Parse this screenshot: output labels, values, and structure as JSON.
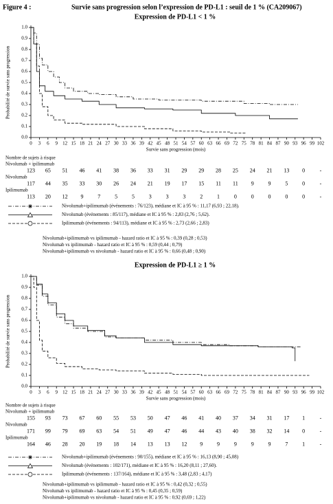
{
  "header": {
    "label": "Figure 4 :",
    "title": "Survie sans progression selon l’expression de PD-L1 : seuil de 1 % (CA209067)"
  },
  "chart_data": [
    {
      "type": "line",
      "title": "Expression de PD-L1 < 1 %",
      "y_label": "Probabilité de survie sans progression",
      "x_label": "Survie sans progression (mois)",
      "xlim": [
        0,
        102
      ],
      "xticks": [
        0,
        3,
        6,
        9,
        12,
        15,
        18,
        21,
        24,
        27,
        30,
        33,
        36,
        39,
        42,
        45,
        48,
        51,
        54,
        57,
        60,
        63,
        66,
        69,
        72,
        75,
        78,
        81,
        84,
        87,
        90,
        93,
        96,
        99,
        102
      ],
      "ylim": [
        0,
        1
      ],
      "yticks": [
        {
          "value": 0,
          "label": "0.0"
        },
        {
          "value": 0.1,
          "label": "0.1"
        },
        {
          "value": 0.2,
          "label": "0.2"
        },
        {
          "value": 0.3,
          "label": "0.3"
        },
        {
          "value": 0.4,
          "label": "0.4"
        },
        {
          "value": 0.5,
          "label": "0.5"
        },
        {
          "value": 0.6,
          "label": "0.6"
        },
        {
          "value": 0.7,
          "label": "0.7"
        },
        {
          "value": 0.8,
          "label": "0.8"
        },
        {
          "value": 0.9,
          "label": "0.9"
        },
        {
          "value": 1,
          "label": "1.0"
        }
      ],
      "series": [
        {
          "name": "Nivolumab+ipilimumab (événements : 76/123), médiane et IC à 95 % : 11,17 (6,93 ; 22,18).",
          "color": "#000000",
          "line_style": "dashdot",
          "marker": "star",
          "x": [
            0,
            1,
            2,
            3,
            4,
            6,
            8,
            10,
            12,
            15,
            20,
            24,
            30,
            36,
            45,
            60,
            75,
            84,
            94
          ],
          "values": [
            1,
            0.95,
            0.85,
            0.72,
            0.66,
            0.6,
            0.55,
            0.5,
            0.45,
            0.42,
            0.4,
            0.39,
            0.37,
            0.35,
            0.34,
            0.33,
            0.31,
            0.3,
            0.3
          ]
        },
        {
          "name": "Nivolumab (événements : 85/117), médiane et IC à 95 % : 2,83 (2,76 ; 5,62).",
          "color": "#000000",
          "line_style": "solid",
          "marker": "triangle",
          "x": [
            0,
            1,
            2,
            3,
            5,
            8,
            12,
            18,
            24,
            30,
            40,
            50,
            60,
            72,
            84,
            94
          ],
          "values": [
            1,
            0.85,
            0.6,
            0.47,
            0.42,
            0.38,
            0.35,
            0.33,
            0.3,
            0.27,
            0.26,
            0.25,
            0.22,
            0.2,
            0.17,
            0.17
          ]
        },
        {
          "name": "Ipilimumab (événements : 94/113), médiane et IC à 95 % : 2,73 (2,66 ; 2,83)",
          "color": "#000000",
          "line_style": "dashed",
          "marker": "circle",
          "x": [
            0,
            1,
            2,
            3,
            4,
            6,
            8,
            12,
            18,
            30,
            40,
            50,
            60,
            70,
            76
          ],
          "values": [
            1,
            0.85,
            0.65,
            0.4,
            0.28,
            0.2,
            0.16,
            0.13,
            0.12,
            0.1,
            0.08,
            0.06,
            0.05,
            0.04,
            0.04
          ]
        }
      ],
      "risk_table": {
        "title": "Nombre de sujets à risque",
        "x": [
          0,
          6,
          12,
          18,
          24,
          30,
          36,
          42,
          48,
          54,
          60,
          66,
          72,
          78,
          84,
          90,
          96,
          102
        ],
        "groups": [
          {
            "name": "Nivolumab + ipilimumab",
            "counts": [
              123,
              65,
              51,
              46,
              41,
              38,
              36,
              33,
              31,
              29,
              29,
              28,
              25,
              24,
              21,
              13,
              0,
              "-"
            ]
          },
          {
            "name": "Nivolumab",
            "counts": [
              117,
              44,
              35,
              33,
              30,
              26,
              24,
              21,
              19,
              17,
              15,
              11,
              11,
              9,
              9,
              5,
              0,
              "-"
            ]
          },
          {
            "name": "Ipilimumab",
            "counts": [
              113,
              20,
              12,
              9,
              7,
              5,
              5,
              3,
              3,
              3,
              2,
              1,
              0,
              0,
              0,
              0,
              0,
              "-"
            ]
          }
        ]
      },
      "comparisons": [
        "Nivolumab+ipilimumab vs ipilimumab - hazard ratio et IC à 95 % : 0,39 (0,28 ; 0,53)",
        "Nivolumab vs ipilimumab - hazard ratio et IC à 95 % : 0,59 (0,44 ; 0,79)",
        "Nivolumab+ipilimumab vs nivolumab - hazard ratio et IC à 95 % : 0,66 (0,48 ; 0,90)"
      ]
    },
    {
      "type": "line",
      "title": "Expression de PD-L1 ≥ 1 %",
      "y_label": "Probabilité de survie sans progression",
      "x_label": "Survie sans progression (mois)",
      "xlim": [
        0,
        102
      ],
      "xticks": [
        0,
        3,
        6,
        9,
        12,
        15,
        18,
        21,
        24,
        27,
        30,
        33,
        36,
        39,
        42,
        45,
        48,
        51,
        54,
        57,
        60,
        63,
        66,
        69,
        72,
        75,
        78,
        81,
        84,
        87,
        90,
        93,
        96,
        99,
        102
      ],
      "ylim": [
        0,
        1
      ],
      "yticks": [
        {
          "value": 0,
          "label": "0.0"
        },
        {
          "value": 0.1,
          "label": "0.1"
        },
        {
          "value": 0.2,
          "label": "0.2"
        },
        {
          "value": 0.3,
          "label": "0.3"
        },
        {
          "value": 0.4,
          "label": "0.4"
        },
        {
          "value": 0.5,
          "label": "0.5"
        },
        {
          "value": 0.6,
          "label": "0.6"
        },
        {
          "value": 0.7,
          "label": "0.7"
        },
        {
          "value": 0.8,
          "label": "0.8"
        },
        {
          "value": 0.9,
          "label": "0.9"
        },
        {
          "value": 1,
          "label": "1.0"
        }
      ],
      "series": [
        {
          "name": "Nivolumab+ipilimumab (événements : 90/155), médiane et IC à 95 % : 16,13 (8,90 ; 45,08)",
          "color": "#000000",
          "line_style": "dashdot",
          "marker": "star",
          "x": [
            0,
            2,
            4,
            6,
            9,
            12,
            15,
            20,
            26,
            30,
            40,
            50,
            60,
            70,
            80,
            95
          ],
          "values": [
            1,
            0.92,
            0.82,
            0.74,
            0.63,
            0.57,
            0.53,
            0.5,
            0.45,
            0.44,
            0.42,
            0.4,
            0.38,
            0.37,
            0.36,
            0.35
          ]
        },
        {
          "name": "Nivolumab (événements : 102/171), médiane et IC à 95 % : 16,20 (8,11 ; 27,60).",
          "color": "#000000",
          "line_style": "solid",
          "marker": "triangle",
          "x": [
            0,
            2,
            4,
            6,
            9,
            12,
            15,
            20,
            26,
            30,
            40,
            50,
            60,
            80,
            92,
            93
          ],
          "values": [
            1,
            0.93,
            0.84,
            0.76,
            0.66,
            0.6,
            0.55,
            0.51,
            0.46,
            0.44,
            0.4,
            0.38,
            0.37,
            0.36,
            0.35,
            0.23
          ]
        },
        {
          "name": "Ipilimumab (événements : 137/164), médiane et IC à 95 % : 3,48 (2,83 ; 4,17)",
          "color": "#000000",
          "line_style": "dashed",
          "marker": "circle",
          "x": [
            0,
            1,
            2,
            3,
            4,
            6,
            9,
            12,
            18,
            24,
            30,
            40,
            50,
            60,
            80,
            98
          ],
          "values": [
            1,
            0.9,
            0.6,
            0.42,
            0.32,
            0.26,
            0.21,
            0.18,
            0.16,
            0.15,
            0.14,
            0.12,
            0.11,
            0.1,
            0.1,
            0.1
          ]
        }
      ],
      "risk_table": {
        "title": "Nombre de sujets à risque",
        "x": [
          0,
          6,
          12,
          18,
          24,
          30,
          36,
          42,
          48,
          54,
          60,
          66,
          72,
          78,
          84,
          90,
          96,
          102
        ],
        "groups": [
          {
            "name": "Nivolumab + ipilimumab",
            "counts": [
              155,
              93,
              73,
              67,
              60,
              55,
              53,
              50,
              47,
              46,
              41,
              40,
              37,
              34,
              31,
              17,
              1,
              "-"
            ]
          },
          {
            "name": "Nivolumab",
            "counts": [
              171,
              99,
              79,
              69,
              63,
              54,
              51,
              49,
              47,
              46,
              44,
              43,
              40,
              38,
              32,
              14,
              0,
              "-"
            ]
          },
          {
            "name": "Ipilimumab",
            "counts": [
              164,
              46,
              28,
              20,
              19,
              18,
              14,
              13,
              13,
              12,
              9,
              9,
              9,
              9,
              9,
              7,
              1,
              "-"
            ]
          }
        ]
      },
      "comparisons": [
        "Nivolumab+ipilimumab vs ipilimumab - hazard ratio et IC à 95 % : 0,42 (0,32 ; 0,55)",
        "Nivolumab vs ipilimumab - hazard ratio et IC à 95 % : 0,45 (0,35 ; 0,59)",
        "Nivolumab+ipilimumab vs nivolumab - hazard ratio et IC à 95 % : 0,92 (0,69 ; 1,22)"
      ]
    }
  ]
}
